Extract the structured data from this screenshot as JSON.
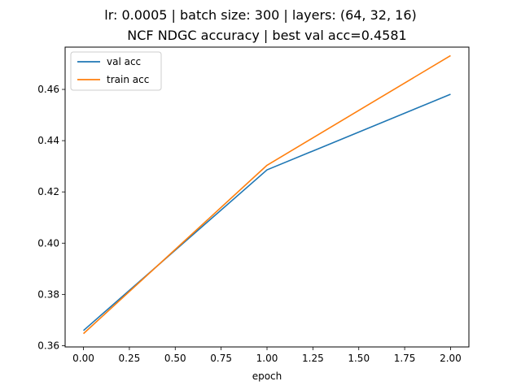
{
  "chart_data": {
    "type": "line",
    "title": "lr: 0.0005 | batch size: 300 | layers: (64, 32, 16)",
    "subtitle": "NCF NDGC accuracy | best val acc=0.4581",
    "xlabel": "epoch",
    "ylabel": "",
    "x": [
      0,
      1,
      2
    ],
    "xlim": [
      -0.1,
      2.1
    ],
    "ylim": [
      0.3595,
      0.4765
    ],
    "xticks": [
      "0.00",
      "0.25",
      "0.50",
      "0.75",
      "1.00",
      "1.25",
      "1.50",
      "1.75",
      "2.00"
    ],
    "yticks": [
      "0.36",
      "0.38",
      "0.40",
      "0.42",
      "0.44",
      "0.46"
    ],
    "grid": false,
    "legend_position": "upper-left",
    "series": [
      {
        "name": "val acc",
        "color": "#1f77b4",
        "values": [
          0.3659,
          0.4286,
          0.4581
        ]
      },
      {
        "name": "train acc",
        "color": "#ff7f0e",
        "values": [
          0.3647,
          0.4304,
          0.4732
        ]
      }
    ]
  }
}
